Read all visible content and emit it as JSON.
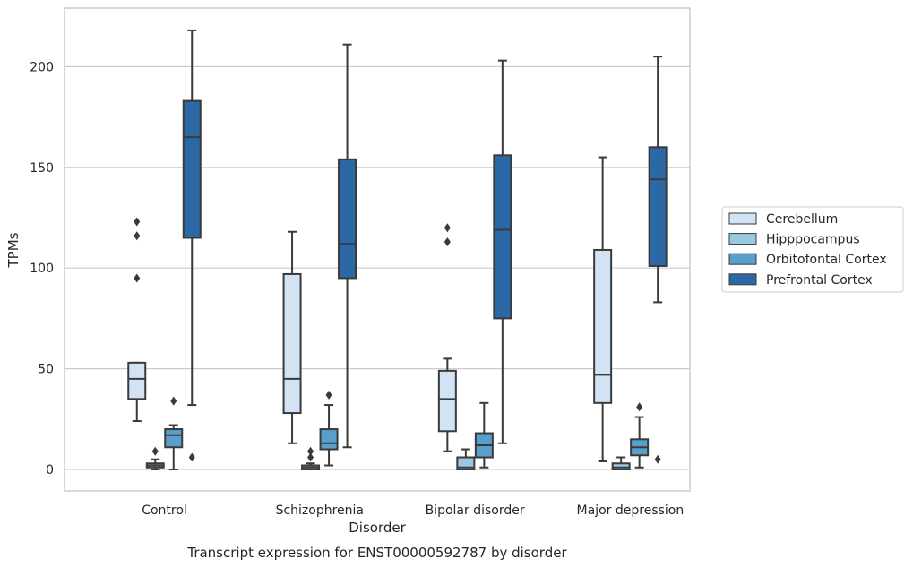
{
  "chart_data": {
    "type": "box",
    "caption": "Transcript expression for ENST00000592787 by disorder",
    "xlabel": "Disorder",
    "ylabel": "TPMs",
    "ylim": [
      -10,
      230
    ],
    "yticks": [
      0,
      50,
      100,
      150,
      200
    ],
    "grid": "horizontal",
    "legend_position": "right",
    "categories": [
      "Control",
      "Schizophrenia",
      "Bipolar disorder",
      "Major depression"
    ],
    "series": [
      {
        "name": "Cerebellum",
        "color": "#d2e3f3",
        "boxes": [
          {
            "whisker_low": 24,
            "q1": 35,
            "median": 45,
            "q3": 53,
            "whisker_high": 53,
            "outliers": [
              95,
              116,
              123
            ]
          },
          {
            "whisker_low": 13,
            "q1": 28,
            "median": 45,
            "q3": 97,
            "whisker_high": 118,
            "outliers": []
          },
          {
            "whisker_low": 9,
            "q1": 19,
            "median": 35,
            "q3": 49,
            "whisker_high": 55,
            "outliers": [
              113,
              120
            ]
          },
          {
            "whisker_low": 4,
            "q1": 33,
            "median": 47,
            "q3": 109,
            "whisker_high": 155,
            "outliers": []
          }
        ]
      },
      {
        "name": "Hipppocampus",
        "color": "#9ac8e0",
        "boxes": [
          {
            "whisker_low": 0,
            "q1": 1,
            "median": 2,
            "q3": 3,
            "whisker_high": 5,
            "outliers": [
              9
            ]
          },
          {
            "whisker_low": 0,
            "q1": 0,
            "median": 1,
            "q3": 2,
            "whisker_high": 3,
            "outliers": [
              6,
              9
            ]
          },
          {
            "whisker_low": 0,
            "q1": 0,
            "median": 1,
            "q3": 6,
            "whisker_high": 10,
            "outliers": []
          },
          {
            "whisker_low": 0,
            "q1": 0,
            "median": 1,
            "q3": 3,
            "whisker_high": 6,
            "outliers": []
          }
        ]
      },
      {
        "name": "Orbitofontal Cortex",
        "color": "#5a9fcb",
        "boxes": [
          {
            "whisker_low": 0,
            "q1": 11,
            "median": 17,
            "q3": 20,
            "whisker_high": 22,
            "outliers": [
              34
            ]
          },
          {
            "whisker_low": 2,
            "q1": 10,
            "median": 13,
            "q3": 20,
            "whisker_high": 32,
            "outliers": [
              37
            ]
          },
          {
            "whisker_low": 1,
            "q1": 6,
            "median": 12,
            "q3": 18,
            "whisker_high": 33,
            "outliers": []
          },
          {
            "whisker_low": 1,
            "q1": 7,
            "median": 11,
            "q3": 15,
            "whisker_high": 26,
            "outliers": [
              31
            ]
          }
        ]
      },
      {
        "name": "Prefrontal Cortex",
        "color": "#2a68a6",
        "boxes": [
          {
            "whisker_low": 32,
            "q1": 115,
            "median": 165,
            "q3": 183,
            "whisker_high": 218,
            "outliers": [
              6
            ]
          },
          {
            "whisker_low": 11,
            "q1": 95,
            "median": 112,
            "q3": 154,
            "whisker_high": 211,
            "outliers": []
          },
          {
            "whisker_low": 13,
            "q1": 75,
            "median": 119,
            "q3": 156,
            "whisker_high": 203,
            "outliers": []
          },
          {
            "whisker_low": 83,
            "q1": 101,
            "median": 144,
            "q3": 160,
            "whisker_high": 205,
            "outliers": [
              5
            ]
          }
        ]
      }
    ]
  }
}
